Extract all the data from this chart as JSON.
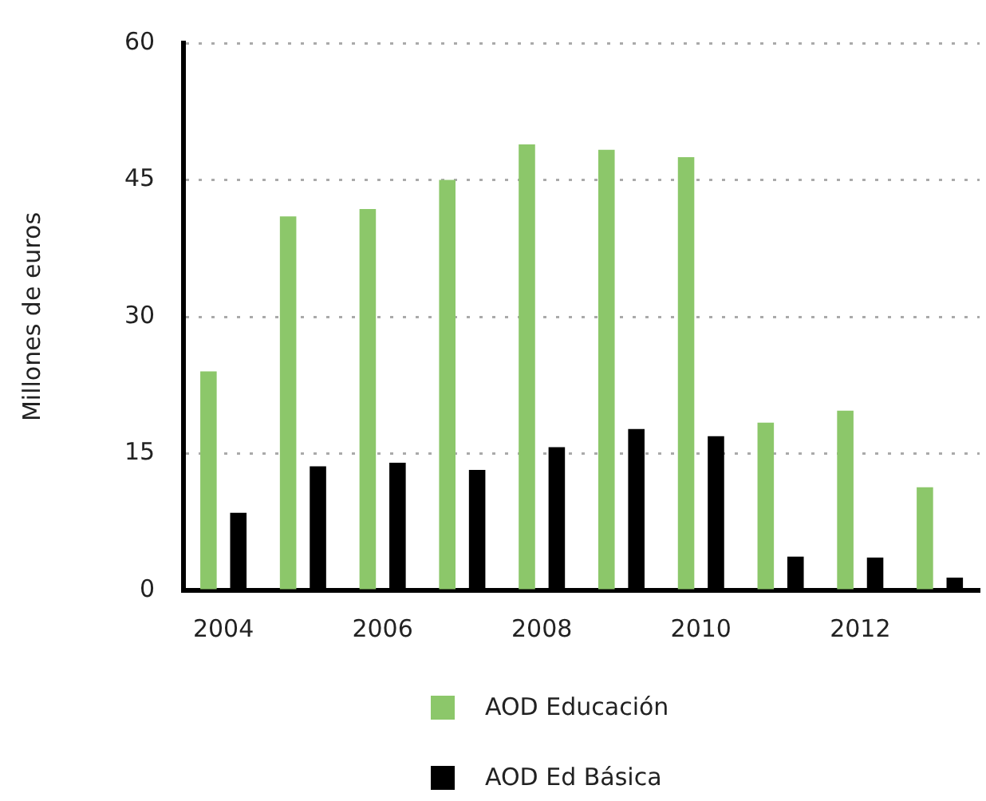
{
  "chart_data": {
    "type": "bar",
    "ylabel": "Millones de euros",
    "categories": [
      "2004",
      null,
      "2006",
      null,
      "2008",
      null,
      "2010",
      null,
      "2012",
      null
    ],
    "series": [
      {
        "name": "AOD Educación",
        "color": "#8cc76a",
        "values": [
          24,
          41,
          41.8,
          45,
          48.9,
          48.3,
          47.5,
          18.4,
          19.7,
          11.3
        ]
      },
      {
        "name": "AOD Ed Básica",
        "color": "#000000",
        "values": [
          8.5,
          13.6,
          14,
          13.2,
          15.7,
          17.7,
          16.9,
          3.7,
          3.6,
          1.4
        ]
      }
    ],
    "ylim": [
      0,
      60
    ],
    "yticks": [
      0,
      15,
      30,
      45,
      60
    ],
    "grid": "y",
    "legend": "bottom"
  }
}
